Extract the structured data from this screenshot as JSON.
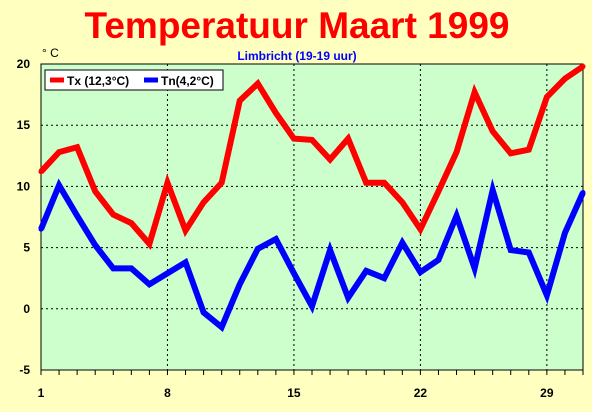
{
  "chart_data": {
    "type": "line",
    "title": "Temperatuur Maart 1999",
    "subtitle": "Limbricht (19-19 uur)",
    "unit_label": "° C",
    "xlabel": "",
    "ylabel": "",
    "xlim": [
      1,
      31
    ],
    "ylim": [
      -5,
      20
    ],
    "x_ticks": [
      1,
      8,
      15,
      22,
      29
    ],
    "y_ticks": [
      20,
      15,
      10,
      5,
      0,
      -5
    ],
    "grid": true,
    "legend_position": "top-left",
    "plot_background": "#ccffcc",
    "page_background": "#ffffc0",
    "title_color": "#ff0000",
    "subtitle_color": "#0000ff",
    "x": [
      1,
      2,
      3,
      4,
      5,
      6,
      7,
      8,
      9,
      10,
      11,
      12,
      13,
      14,
      15,
      16,
      17,
      18,
      19,
      20,
      21,
      22,
      23,
      24,
      25,
      26,
      27,
      28,
      29,
      30,
      31
    ],
    "series": [
      {
        "name": "Tx (12,3°C)",
        "color": "#ff0000",
        "values": [
          11.2,
          12.8,
          13.2,
          9.6,
          7.7,
          7.0,
          5.3,
          10.3,
          6.4,
          8.7,
          10.3,
          17.0,
          18.4,
          16.0,
          13.9,
          13.8,
          12.2,
          13.9,
          10.3,
          10.3,
          8.7,
          6.5,
          9.6,
          12.8,
          17.7,
          14.5,
          12.7,
          13.0,
          17.3,
          18.8,
          19.8
        ]
      },
      {
        "name": "Tn(4,2°C)",
        "color": "#0000ff",
        "values": [
          6.5,
          10.1,
          7.6,
          5.2,
          3.3,
          3.3,
          2.0,
          2.9,
          3.8,
          -0.3,
          -1.5,
          2.0,
          4.9,
          5.7,
          2.9,
          0.2,
          4.8,
          0.9,
          3.1,
          2.5,
          5.4,
          3.0,
          4.0,
          7.6,
          3.3,
          9.7,
          4.8,
          4.6,
          1.1,
          6.2,
          9.5
        ]
      }
    ]
  }
}
